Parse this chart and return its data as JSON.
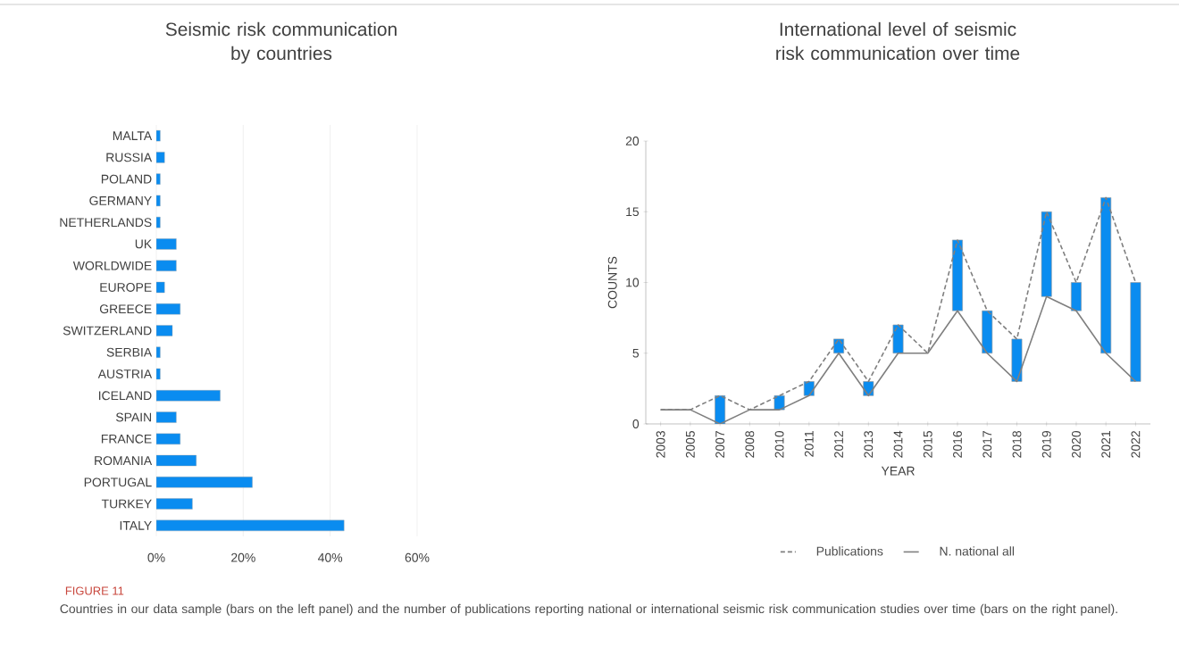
{
  "chart_data": [
    {
      "type": "bar",
      "orientation": "horizontal",
      "title": "Seismic risk communication by countries",
      "color": "#0a8cf0",
      "grid": "x",
      "categories": [
        "MALTA",
        "RUSSIA",
        "POLAND",
        "GERMANY",
        "NETHERLANDS",
        "UK",
        "WORLDWIDE",
        "EUROPE",
        "GREECE",
        "SWITZERLAND",
        "SERBIA",
        "AUSTRIA",
        "ICELAND",
        "SPAIN",
        "FRANCE",
        "ROMANIA",
        "PORTUGAL",
        "TURKEY",
        "ITALY"
      ],
      "values": [
        0.9,
        1.9,
        0.9,
        0.9,
        0.9,
        4.6,
        4.6,
        1.9,
        5.5,
        3.7,
        0.9,
        0.9,
        14.7,
        4.6,
        5.5,
        9.2,
        22.1,
        8.3,
        43.2
      ],
      "xlim": [
        0,
        60
      ],
      "xticks": [
        {
          "value": 0,
          "label": "0%"
        },
        {
          "value": 20,
          "label": "20%"
        },
        {
          "value": 40,
          "label": "40%"
        },
        {
          "value": 60,
          "label": "60%"
        }
      ],
      "annotations": [
        "FIGURE 11",
        "Countries in our data sample (bars on the left panel) and the number of publications reporting national or international seismic risk communication studies over time (bars on the right panel)."
      ]
    },
    {
      "type": "line",
      "title": "International level of seismic risk communication over time",
      "xlabel": "YEAR",
      "ylabel": "COUNTS",
      "grid": false,
      "legend": "bottom",
      "marker": "none",
      "categories": [
        "2003",
        "2005",
        "2007",
        "2008",
        "2010",
        "2011",
        "2012",
        "2013",
        "2014",
        "2015",
        "2016",
        "2017",
        "2018",
        "2019",
        "2020",
        "2021",
        "2022"
      ],
      "ylim": [
        0,
        20
      ],
      "yticks": [
        0,
        5,
        10,
        15,
        20
      ],
      "series": [
        {
          "name": "Publications",
          "color": "#7f7f7f",
          "line_style": "dashed",
          "values": [
            1,
            1,
            2,
            1,
            2,
            3,
            6,
            3,
            7,
            5,
            13,
            8,
            6,
            15,
            10,
            16,
            10
          ]
        },
        {
          "name": "N. national all",
          "color": "#7f7f7f",
          "line_style": "solid",
          "values": [
            1,
            1,
            0,
            1,
            1,
            2,
            5,
            2,
            5,
            5,
            8,
            5,
            3,
            9,
            8,
            5,
            3
          ]
        },
        {
          "type": "bar",
          "color": "#0a8cf0",
          "base": [
            null,
            null,
            0,
            null,
            1,
            2,
            5,
            2,
            5,
            null,
            8,
            5,
            3,
            9,
            8,
            5,
            3
          ],
          "values": [
            null,
            null,
            2,
            null,
            1,
            1,
            1,
            1,
            2,
            null,
            5,
            3,
            3,
            6,
            2,
            11,
            7
          ]
        }
      ]
    }
  ]
}
